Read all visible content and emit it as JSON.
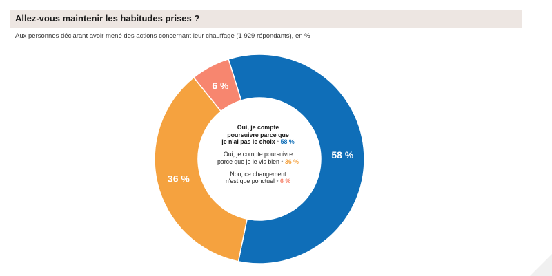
{
  "title": "Allez-vous maintenir les habitudes prises ?",
  "subtitle": "Aux personnes déclarant avoir mené des actions concernant leur chauffage (1 929  répondants), en %",
  "chart_data": {
    "type": "pie",
    "variant": "donut",
    "title": "Allez-vous maintenir les habitudes prises ?",
    "categories": [
      "Oui, je compte poursuivre parce que je n'ai pas le choix",
      "Oui, je compte poursuivre parce que je le vis bien",
      "Non, ce changement n'est que ponctuel"
    ],
    "values": [
      58,
      36,
      6
    ],
    "colors": [
      "#0f6eb8",
      "#f5a23f",
      "#f7866f"
    ],
    "data_labels": [
      "58 %",
      "36 %",
      "6 %"
    ],
    "unit": "%"
  },
  "legend": [
    {
      "label_lines": [
        "Oui, je compte",
        "poursuivre parce que",
        "je n'ai pas le choix"
      ],
      "value": "58 %",
      "sep": "•",
      "color": "#0f6eb8"
    },
    {
      "label_lines": [
        "Oui, je compte poursuivre",
        "parce que je le vis bien"
      ],
      "value": "36 %",
      "sep": "•",
      "color": "#f5a23f"
    },
    {
      "label_lines": [
        "Non, ce changement",
        "n'est que ponctuel"
      ],
      "value": "6 %",
      "sep": "•",
      "color": "#f7866f"
    }
  ]
}
